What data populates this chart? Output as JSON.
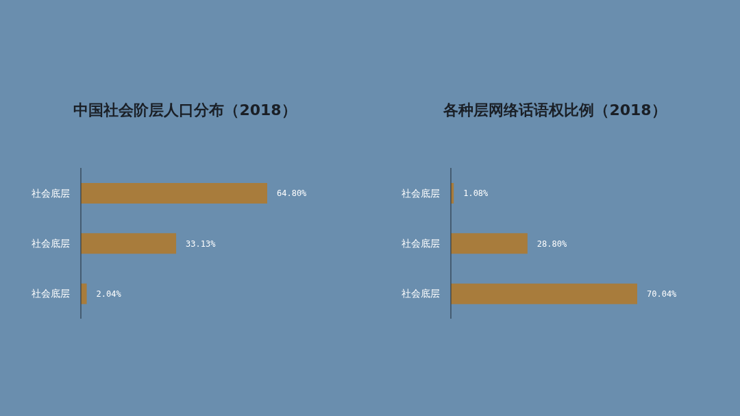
{
  "chart_data": [
    {
      "type": "bar",
      "orientation": "horizontal",
      "title": "中国社会阶层人口分布（2018）",
      "categories": [
        "社会底层",
        "社会底层",
        "社会底层"
      ],
      "values": [
        64.8,
        33.13,
        2.04
      ],
      "value_labels": [
        "64.80%",
        "33.13%",
        "2.04%"
      ],
      "color": "#a87c3c"
    },
    {
      "type": "bar",
      "orientation": "horizontal",
      "title": "各种层网络话语权比例（2018）",
      "categories": [
        "社会底层",
        "社会底层",
        "社会底层"
      ],
      "values": [
        1.08,
        28.8,
        70.04
      ],
      "value_labels": [
        "1.08%",
        "28.80%",
        "70.04%"
      ],
      "color": "#a87c3c"
    }
  ]
}
